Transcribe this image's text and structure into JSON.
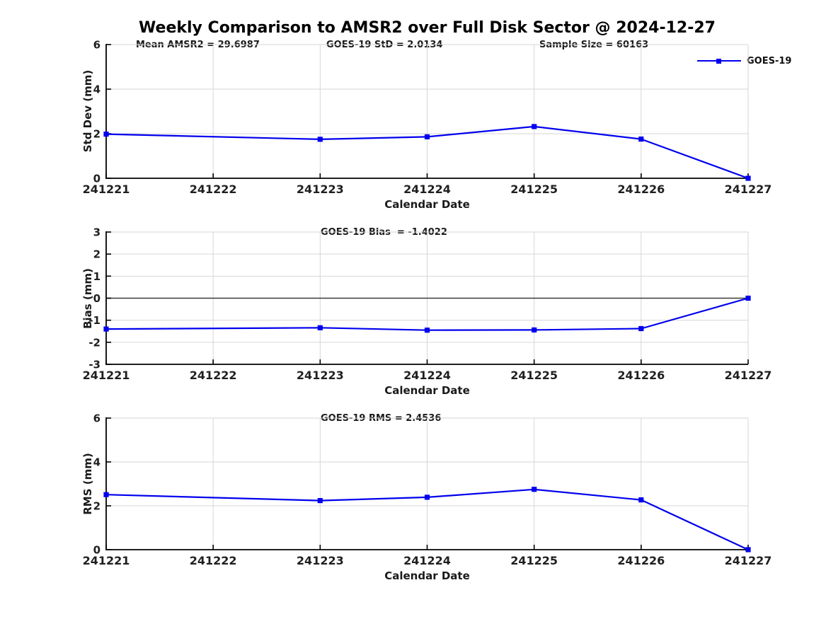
{
  "title": "Weekly Comparison to AMSR2 over Full Disk Sector @ 2024-12-27",
  "colors": {
    "series_blue": "#0000ee",
    "grid": "#d6d6d6",
    "axis": "#000000",
    "zero_line": "#3a3a3a",
    "tick_text": "#1f1f1f"
  },
  "chart_data": [
    {
      "type": "line",
      "name": "std-dev",
      "annotations": [
        "Mean AMSR2 = 29.6987",
        "GOES-19 StD = 2.0134",
        "Sample Size = 60163"
      ],
      "ylabel": "Std Dev (mm)",
      "xlabel": "Calendar Date",
      "ylim": [
        0,
        6
      ],
      "yticks": [
        0,
        2,
        4,
        6
      ],
      "xticks": [
        241221,
        241222,
        241223,
        241224,
        241225,
        241226,
        241227
      ],
      "grid": true,
      "zero_line": false,
      "legend_position": "top-right",
      "legend_box": false,
      "series": [
        {
          "name": "GOES-19",
          "color": "#0000ee",
          "marker": "square",
          "x": [
            241221,
            241223,
            241224,
            241225,
            241226,
            241227
          ],
          "y": [
            1.98,
            1.75,
            1.86,
            2.32,
            1.76,
            0.0
          ]
        }
      ]
    },
    {
      "type": "line",
      "name": "bias",
      "annotations": [
        "GOES-19 Bias  = -1.4022"
      ],
      "ylabel": "Bias (mm)",
      "xlabel": "Calendar Date",
      "ylim": [
        -3,
        3
      ],
      "yticks": [
        -3,
        -2,
        -1,
        0,
        1,
        2,
        3
      ],
      "xticks": [
        241221,
        241222,
        241223,
        241224,
        241225,
        241226,
        241227
      ],
      "grid": true,
      "zero_line": true,
      "series": [
        {
          "name": "GOES-19",
          "color": "#0000ee",
          "marker": "square",
          "x": [
            241221,
            241223,
            241224,
            241225,
            241226,
            241227
          ],
          "y": [
            -1.4,
            -1.34,
            -1.45,
            -1.44,
            -1.38,
            0.0
          ]
        }
      ]
    },
    {
      "type": "line",
      "name": "rms",
      "annotations": [
        "GOES-19 RMS = 2.4536"
      ],
      "ylabel": "RMS (mm)",
      "xlabel": "Calendar Date",
      "ylim": [
        0,
        6
      ],
      "yticks": [
        0,
        2,
        4,
        6
      ],
      "xticks": [
        241221,
        241222,
        241223,
        241224,
        241225,
        241226,
        241227
      ],
      "grid": true,
      "zero_line": false,
      "series": [
        {
          "name": "GOES-19",
          "color": "#0000ee",
          "marker": "square",
          "x": [
            241221,
            241223,
            241224,
            241225,
            241226,
            241227
          ],
          "y": [
            2.51,
            2.24,
            2.39,
            2.75,
            2.27,
            0.0
          ]
        }
      ]
    }
  ]
}
